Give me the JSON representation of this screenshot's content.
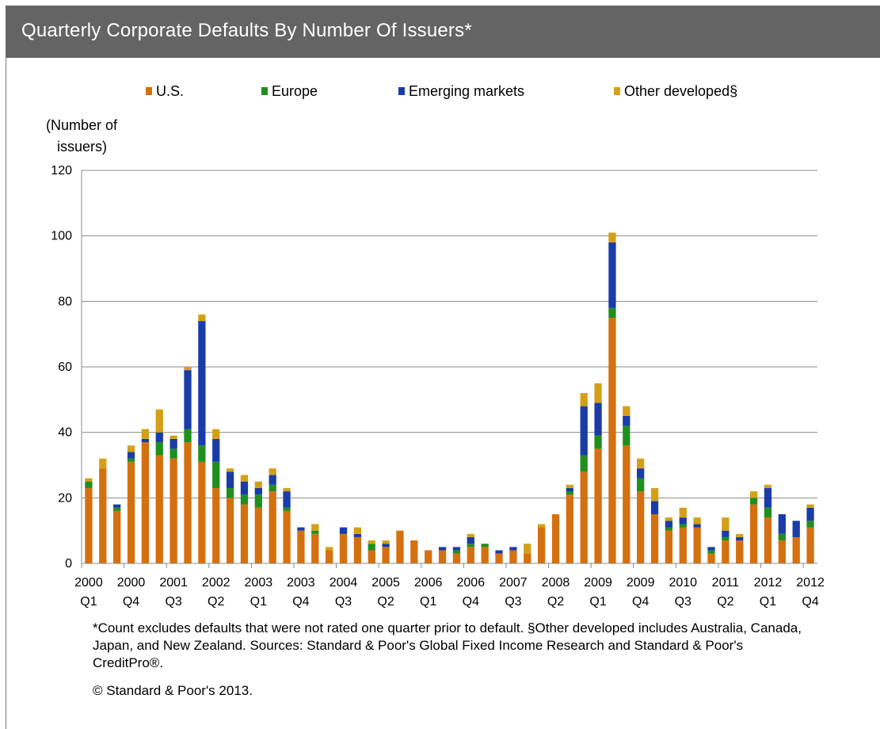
{
  "header": {
    "title": "Quarterly Corporate Defaults By Number Of Issuers*"
  },
  "colors": {
    "us": "#d4700f",
    "europe": "#1f8f1f",
    "emerging": "#1a3ca8",
    "other": "#d4a017",
    "header_bg": "#646464"
  },
  "chart_data": {
    "type": "bar",
    "stacked": true,
    "ylabel": "(Number of issuers)",
    "ylabel_lines": [
      "(Number of",
      "issuers)"
    ],
    "ylim": [
      0,
      120
    ],
    "yticks": [
      0,
      20,
      40,
      60,
      80,
      100,
      120
    ],
    "grid": true,
    "legend_position": "top",
    "categories": [
      "2000 Q1",
      "2000 Q2",
      "2000 Q3",
      "2000 Q4",
      "2001 Q1",
      "2001 Q2",
      "2001 Q3",
      "2001 Q4",
      "2002 Q1",
      "2002 Q2",
      "2002 Q3",
      "2002 Q4",
      "2003 Q1",
      "2003 Q2",
      "2003 Q3",
      "2003 Q4",
      "2004 Q1",
      "2004 Q2",
      "2004 Q3",
      "2004 Q4",
      "2005 Q1",
      "2005 Q2",
      "2005 Q3",
      "2005 Q4",
      "2006 Q1",
      "2006 Q2",
      "2006 Q3",
      "2006 Q4",
      "2007 Q1",
      "2007 Q2",
      "2007 Q3",
      "2007 Q4",
      "2008 Q1",
      "2008 Q2",
      "2008 Q3",
      "2008 Q4",
      "2009 Q1",
      "2009 Q2",
      "2009 Q3",
      "2009 Q4",
      "2010 Q1",
      "2010 Q2",
      "2010 Q3",
      "2010 Q4",
      "2011 Q1",
      "2011 Q2",
      "2011 Q3",
      "2011 Q4",
      "2012 Q1",
      "2012 Q2",
      "2012 Q3",
      "2012 Q4"
    ],
    "x_tick_labels": [
      {
        "index": 0,
        "year": "2000",
        "quarter": "Q1"
      },
      {
        "index": 3,
        "year": "2000",
        "quarter": "Q4"
      },
      {
        "index": 6,
        "year": "2001",
        "quarter": "Q3"
      },
      {
        "index": 9,
        "year": "2002",
        "quarter": "Q2"
      },
      {
        "index": 12,
        "year": "2003",
        "quarter": "Q1"
      },
      {
        "index": 15,
        "year": "2003",
        "quarter": "Q4"
      },
      {
        "index": 18,
        "year": "2004",
        "quarter": "Q3"
      },
      {
        "index": 21,
        "year": "2005",
        "quarter": "Q2"
      },
      {
        "index": 24,
        "year": "2006",
        "quarter": "Q1"
      },
      {
        "index": 27,
        "year": "2006",
        "quarter": "Q4"
      },
      {
        "index": 30,
        "year": "2007",
        "quarter": "Q3"
      },
      {
        "index": 33,
        "year": "2008",
        "quarter": "Q2"
      },
      {
        "index": 36,
        "year": "2009",
        "quarter": "Q1"
      },
      {
        "index": 39,
        "year": "2009",
        "quarter": "Q4"
      },
      {
        "index": 42,
        "year": "2010",
        "quarter": "Q3"
      },
      {
        "index": 45,
        "year": "2011",
        "quarter": "Q2"
      },
      {
        "index": 48,
        "year": "2012",
        "quarter": "Q1"
      },
      {
        "index": 51,
        "year": "2012",
        "quarter": "Q4"
      }
    ],
    "series": [
      {
        "name": "U.S.",
        "color_key": "us",
        "values": [
          23,
          29,
          16,
          31,
          37,
          33,
          32,
          37,
          31,
          23,
          20,
          18,
          17,
          22,
          16,
          10,
          9,
          4,
          9,
          8,
          4,
          5,
          10,
          7,
          4,
          4,
          3,
          5,
          5,
          3,
          4,
          3,
          11,
          15,
          21,
          28,
          35,
          75,
          36,
          22,
          15,
          10,
          11,
          11,
          3,
          7,
          7,
          18,
          14,
          7,
          8,
          11
        ]
      },
      {
        "name": "Europe",
        "color_key": "europe",
        "values": [
          2,
          0,
          1,
          1,
          0,
          4,
          3,
          4,
          5,
          8,
          3,
          3,
          4,
          2,
          1,
          0,
          1,
          0,
          0,
          0,
          2,
          0,
          0,
          0,
          0,
          0,
          1,
          1,
          1,
          0,
          0,
          0,
          0,
          0,
          1,
          5,
          4,
          3,
          6,
          4,
          0,
          1,
          1,
          0,
          1,
          1,
          0,
          2,
          3,
          2,
          0,
          2
        ]
      },
      {
        "name": "Emerging markets",
        "color_key": "emerging",
        "values": [
          0,
          0,
          1,
          2,
          1,
          3,
          3,
          18,
          38,
          7,
          5,
          4,
          2,
          3,
          5,
          1,
          0,
          0,
          2,
          1,
          0,
          1,
          0,
          0,
          0,
          1,
          1,
          2,
          0,
          1,
          1,
          0,
          0,
          0,
          1,
          15,
          10,
          20,
          3,
          3,
          4,
          2,
          2,
          1,
          1,
          2,
          1,
          0,
          6,
          6,
          5,
          4
        ]
      },
      {
        "name": "Other developed§",
        "color_key": "other",
        "values": [
          1,
          3,
          0,
          2,
          3,
          7,
          1,
          1,
          2,
          3,
          1,
          2,
          2,
          2,
          1,
          0,
          2,
          1,
          0,
          2,
          1,
          1,
          0,
          0,
          0,
          0,
          0,
          1,
          0,
          0,
          0,
          3,
          1,
          0,
          1,
          4,
          6,
          3,
          3,
          3,
          4,
          1,
          3,
          2,
          0,
          4,
          1,
          2,
          1,
          0,
          0,
          1
        ]
      }
    ]
  },
  "footnote": "*Count excludes defaults that were not rated one quarter prior to default. §Other developed includes Australia, Canada, Japan, and New Zealand. Sources: Standard & Poor's Global Fixed Income Research and Standard & Poor's CreditPro®.",
  "copyright": "© Standard & Poor's 2013."
}
